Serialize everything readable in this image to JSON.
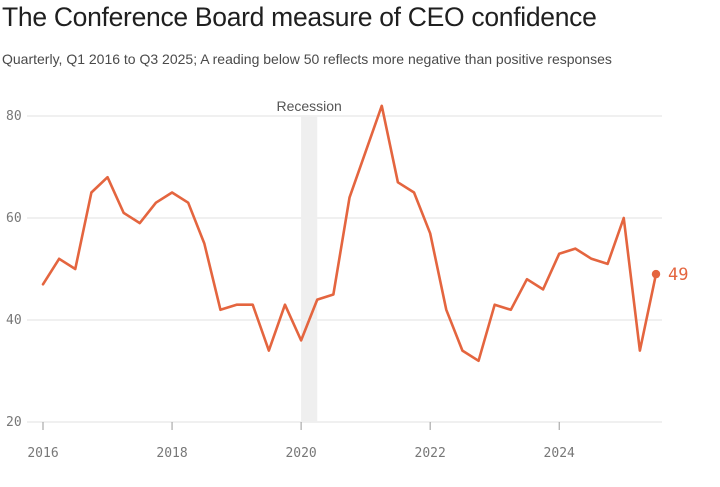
{
  "title": "The Conference Board measure of CEO confidence",
  "subtitle": "Quarterly, Q1 2016 to Q3 2025; A reading below 50 reflects more negative than positive responses",
  "colors": {
    "line": "#e4653f",
    "grid": "#e2e2e2",
    "recession": "#efefef"
  },
  "chart_data": {
    "type": "line",
    "title": "The Conference Board measure of CEO confidence",
    "xlabel": "",
    "ylabel": "",
    "xlim": [
      2016,
      2025.5
    ],
    "ylim": [
      20,
      80
    ],
    "grid": true,
    "x_ticks": [
      {
        "value": 2016,
        "label": "2016"
      },
      {
        "value": 2018,
        "label": "2018"
      },
      {
        "value": 2020,
        "label": "2020"
      },
      {
        "value": 2022,
        "label": "2022"
      },
      {
        "value": 2024,
        "label": "2024"
      }
    ],
    "y_ticks": [
      {
        "value": 20,
        "label": "20"
      },
      {
        "value": 40,
        "label": "40"
      },
      {
        "value": 60,
        "label": "60"
      },
      {
        "value": 80,
        "label": "80"
      }
    ],
    "series": [
      {
        "name": "CEO confidence",
        "x": [
          2016.0,
          2016.25,
          2016.5,
          2016.75,
          2017.0,
          2017.25,
          2017.5,
          2017.75,
          2018.0,
          2018.25,
          2018.5,
          2018.75,
          2019.0,
          2019.25,
          2019.5,
          2019.75,
          2020.0,
          2020.25,
          2020.5,
          2020.75,
          2021.0,
          2021.25,
          2021.5,
          2021.75,
          2022.0,
          2022.25,
          2022.5,
          2022.75,
          2023.0,
          2023.25,
          2023.5,
          2023.75,
          2024.0,
          2024.25,
          2024.5,
          2024.75,
          2025.0,
          2025.25,
          2025.5
        ],
        "values": [
          47,
          52,
          50,
          65,
          68,
          61,
          59,
          63,
          65,
          63,
          55,
          42,
          43,
          43,
          34,
          43,
          36,
          44,
          45,
          64,
          73,
          82,
          67,
          65,
          57,
          42,
          34,
          32,
          43,
          42,
          48,
          46,
          53,
          54,
          52,
          51,
          60,
          34,
          49
        ]
      }
    ],
    "shaded_regions": [
      {
        "label": "Recession",
        "start": 2020.0,
        "end": 2020.25
      }
    ],
    "end_label": "49"
  }
}
